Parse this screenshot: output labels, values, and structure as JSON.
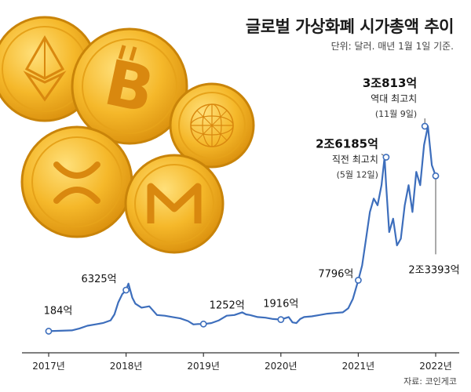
{
  "header": {
    "title": "글로벌 가상화폐 시가총액 추이",
    "subtitle": "단위: 달러. 매년 1월 1일 기준."
  },
  "source": "자료: 코인게코",
  "illustration": {
    "coins": [
      "ethereum-coin-icon",
      "bitcoin-coin-icon",
      "quant-coin-icon",
      "ripple-coin-icon",
      "monero-coin-icon"
    ],
    "coin_color": "#f2b51c"
  },
  "colors": {
    "line": "#3d6ebc",
    "axis": "#333333",
    "marker_fill": "#ffffff"
  },
  "chart_data": {
    "type": "line",
    "title": "글로벌 가상화폐 시가총액 추이",
    "unit": "달러",
    "x_ticks": [
      "2017년",
      "2018년",
      "2019년",
      "2020년",
      "2021년",
      "2022년"
    ],
    "x_range": [
      2017.0,
      2022.15
    ],
    "y_range": [
      0,
      32000
    ],
    "series": [
      {
        "x": [
          2017.0,
          2017.3,
          2017.4,
          2017.5,
          2017.6,
          2017.7,
          2017.8,
          2017.85,
          2017.9,
          2017.95,
          2018.0,
          2018.03,
          2018.08,
          2018.12,
          2018.2,
          2018.3,
          2018.4,
          2018.5,
          2018.6,
          2018.7,
          2018.8,
          2018.87,
          2018.93,
          2019.0,
          2019.1,
          2019.2,
          2019.3,
          2019.4,
          2019.5,
          2019.55,
          2019.6,
          2019.7,
          2019.8,
          2019.9,
          2020.0,
          2020.1,
          2020.15,
          2020.2,
          2020.25,
          2020.3,
          2020.4,
          2020.5,
          2020.6,
          2020.7,
          2020.8,
          2020.87,
          2020.93,
          2021.0,
          2021.05,
          2021.1,
          2021.15,
          2021.2,
          2021.25,
          2021.3,
          2021.34,
          2021.36,
          2021.4,
          2021.45,
          2021.5,
          2021.55,
          2021.6,
          2021.65,
          2021.7,
          2021.75,
          2021.8,
          2021.85,
          2021.9,
          2021.95,
          2022.0
        ],
        "y": [
          184,
          300,
          600,
          1000,
          1200,
          1400,
          1800,
          2700,
          4500,
          5700,
          6325,
          7300,
          5200,
          4300,
          3700,
          3900,
          2600,
          2500,
          2300,
          2100,
          1700,
          1200,
          1250,
          1252,
          1400,
          1800,
          2500,
          2600,
          3000,
          2700,
          2600,
          2300,
          2200,
          2000,
          1916,
          2300,
          1500,
          1400,
          2000,
          2300,
          2400,
          2600,
          2800,
          2900,
          3000,
          3600,
          5000,
          7796,
          10000,
          14000,
          18000,
          20000,
          19000,
          22000,
          26185,
          22000,
          15000,
          17000,
          13000,
          14000,
          19000,
          22000,
          18000,
          24000,
          22000,
          28000,
          30813,
          25000,
          23393
        ],
        "name": "시가총액"
      }
    ],
    "annotations": [
      {
        "x": 2017.0,
        "y": 184,
        "label": "184억",
        "note": "",
        "date": ""
      },
      {
        "x": 2018.0,
        "y": 6325,
        "label": "6325억",
        "note": "",
        "date": ""
      },
      {
        "x": 2019.0,
        "y": 1252,
        "label": "1252억",
        "note": "",
        "date": ""
      },
      {
        "x": 2020.0,
        "y": 1916,
        "label": "1916억",
        "note": "",
        "date": ""
      },
      {
        "x": 2021.0,
        "y": 7796,
        "label": "7796억",
        "note": "",
        "date": ""
      },
      {
        "x": 2021.36,
        "y": 26185,
        "label": "2조6185억",
        "note": "직전 최고치",
        "date": "(5월 12일)"
      },
      {
        "x": 2021.86,
        "y": 30813,
        "label": "3조813억",
        "note": "역대 최고치",
        "date": "(11월 9일)"
      },
      {
        "x": 2022.0,
        "y": 23393,
        "label": "2조3393억",
        "note": "",
        "date": ""
      }
    ]
  }
}
